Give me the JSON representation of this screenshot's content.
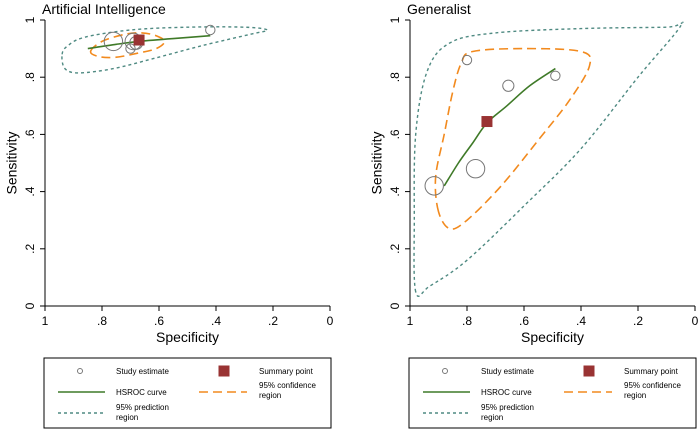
{
  "chart_data": [
    {
      "type": "scatter",
      "title": "Artificial Intelligence",
      "xlabel": "Specificity",
      "ylabel": "Sensitivity",
      "xlim": [
        1.0,
        0.0
      ],
      "ylim": [
        0.0,
        1.0
      ],
      "x_ticks": [
        1,
        0.8,
        0.6,
        0.4,
        0.2,
        0
      ],
      "x_tick_labels": [
        "1",
        ".8",
        ".6",
        ".4",
        ".2",
        "0"
      ],
      "y_ticks": [
        0,
        0.2,
        0.4,
        0.6,
        0.8,
        1
      ],
      "y_tick_labels": [
        "0",
        ".2",
        ".4",
        ".6",
        ".8",
        "1"
      ],
      "study_estimates": [
        {
          "specificity": 0.76,
          "sensitivity": 0.925,
          "weight": 8
        },
        {
          "specificity": 0.7,
          "sensitivity": 0.9,
          "weight": 3
        },
        {
          "specificity": 0.69,
          "sensitivity": 0.925,
          "weight": 7
        },
        {
          "specificity": 0.68,
          "sensitivity": 0.92,
          "weight": 5
        },
        {
          "specificity": 0.42,
          "sensitivity": 0.965,
          "weight": 3
        }
      ],
      "summary_point": {
        "specificity": 0.67,
        "sensitivity": 0.93
      },
      "hsroc_curve": [
        {
          "specificity": 0.85,
          "sensitivity": 0.9
        },
        {
          "specificity": 0.75,
          "sensitivity": 0.915
        },
        {
          "specificity": 0.67,
          "sensitivity": 0.925
        },
        {
          "specificity": 0.55,
          "sensitivity": 0.935
        },
        {
          "specificity": 0.42,
          "sensitivity": 0.945
        }
      ],
      "confidence_region": [
        {
          "specificity": 0.84,
          "sensitivity": 0.89
        },
        {
          "specificity": 0.8,
          "sensitivity": 0.925
        },
        {
          "specificity": 0.72,
          "sensitivity": 0.95
        },
        {
          "specificity": 0.66,
          "sensitivity": 0.955
        },
        {
          "specificity": 0.61,
          "sensitivity": 0.945
        },
        {
          "specificity": 0.58,
          "sensitivity": 0.925
        },
        {
          "specificity": 0.61,
          "sensitivity": 0.9
        },
        {
          "specificity": 0.67,
          "sensitivity": 0.885
        },
        {
          "specificity": 0.75,
          "sensitivity": 0.87
        },
        {
          "specificity": 0.81,
          "sensitivity": 0.872
        }
      ],
      "prediction_region": [
        {
          "specificity": 0.94,
          "sensitivity": 0.88
        },
        {
          "specificity": 0.92,
          "sensitivity": 0.91
        },
        {
          "specificity": 0.86,
          "sensitivity": 0.94
        },
        {
          "specificity": 0.7,
          "sensitivity": 0.965
        },
        {
          "specificity": 0.5,
          "sensitivity": 0.975
        },
        {
          "specificity": 0.3,
          "sensitivity": 0.975
        },
        {
          "specificity": 0.22,
          "sensitivity": 0.965
        },
        {
          "specificity": 0.28,
          "sensitivity": 0.95
        },
        {
          "specificity": 0.45,
          "sensitivity": 0.91
        },
        {
          "specificity": 0.62,
          "sensitivity": 0.865
        },
        {
          "specificity": 0.76,
          "sensitivity": 0.83
        },
        {
          "specificity": 0.88,
          "sensitivity": 0.815
        },
        {
          "specificity": 0.93,
          "sensitivity": 0.83
        }
      ],
      "legend": {
        "study_estimate": "Study estimate",
        "summary_point": "Summary point",
        "hsroc_curve": "HSROC curve",
        "confidence_region_line1": "95% confidence",
        "confidence_region_line2": "region",
        "prediction_region_line1": "95% prediction",
        "prediction_region_line2": "region"
      }
    },
    {
      "type": "scatter",
      "title": "Generalist",
      "xlabel": "Specificity",
      "ylabel": "Sensitivity",
      "xlim": [
        1.0,
        0.0
      ],
      "ylim": [
        0.0,
        1.0
      ],
      "x_ticks": [
        1,
        0.8,
        0.6,
        0.4,
        0.2,
        0
      ],
      "x_tick_labels": [
        "1",
        ".8",
        ".6",
        ".4",
        ".2",
        "0"
      ],
      "y_ticks": [
        0,
        0.2,
        0.4,
        0.6,
        0.8,
        1
      ],
      "y_tick_labels": [
        "0",
        ".2",
        ".4",
        ".6",
        ".8",
        "1"
      ],
      "study_estimates": [
        {
          "specificity": 0.915,
          "sensitivity": 0.42,
          "weight": 8
        },
        {
          "specificity": 0.77,
          "sensitivity": 0.48,
          "weight": 8
        },
        {
          "specificity": 0.8,
          "sensitivity": 0.86,
          "weight": 3
        },
        {
          "specificity": 0.655,
          "sensitivity": 0.77,
          "weight": 4
        },
        {
          "specificity": 0.49,
          "sensitivity": 0.805,
          "weight": 3
        }
      ],
      "summary_point": {
        "specificity": 0.73,
        "sensitivity": 0.645
      },
      "hsroc_curve": [
        {
          "specificity": 0.88,
          "sensitivity": 0.42
        },
        {
          "specificity": 0.83,
          "sensitivity": 0.5
        },
        {
          "specificity": 0.78,
          "sensitivity": 0.57
        },
        {
          "specificity": 0.73,
          "sensitivity": 0.64
        },
        {
          "specificity": 0.66,
          "sensitivity": 0.7
        },
        {
          "specificity": 0.58,
          "sensitivity": 0.77
        },
        {
          "specificity": 0.49,
          "sensitivity": 0.83
        }
      ],
      "confidence_region": [
        {
          "specificity": 0.9,
          "sensitivity": 0.33
        },
        {
          "specificity": 0.91,
          "sensitivity": 0.45
        },
        {
          "specificity": 0.88,
          "sensitivity": 0.6
        },
        {
          "specificity": 0.85,
          "sensitivity": 0.75
        },
        {
          "specificity": 0.82,
          "sensitivity": 0.85
        },
        {
          "specificity": 0.78,
          "sensitivity": 0.89
        },
        {
          "specificity": 0.6,
          "sensitivity": 0.9
        },
        {
          "specificity": 0.4,
          "sensitivity": 0.89
        },
        {
          "specificity": 0.37,
          "sensitivity": 0.84
        },
        {
          "specificity": 0.44,
          "sensitivity": 0.72
        },
        {
          "specificity": 0.55,
          "sensitivity": 0.58
        },
        {
          "specificity": 0.68,
          "sensitivity": 0.42
        },
        {
          "specificity": 0.8,
          "sensitivity": 0.3
        },
        {
          "specificity": 0.86,
          "sensitivity": 0.27
        }
      ],
      "prediction_region": [
        {
          "specificity": 0.98,
          "sensitivity": 0.05
        },
        {
          "specificity": 0.985,
          "sensitivity": 0.3
        },
        {
          "specificity": 0.98,
          "sensitivity": 0.6
        },
        {
          "specificity": 0.94,
          "sensitivity": 0.82
        },
        {
          "specificity": 0.86,
          "sensitivity": 0.92
        },
        {
          "specificity": 0.7,
          "sensitivity": 0.955
        },
        {
          "specificity": 0.4,
          "sensitivity": 0.97
        },
        {
          "specificity": 0.1,
          "sensitivity": 0.975
        },
        {
          "specificity": 0.05,
          "sensitivity": 0.98
        },
        {
          "specificity": 0.2,
          "sensitivity": 0.8
        },
        {
          "specificity": 0.4,
          "sensitivity": 0.55
        },
        {
          "specificity": 0.6,
          "sensitivity": 0.35
        },
        {
          "specificity": 0.8,
          "sensitivity": 0.16
        },
        {
          "specificity": 0.93,
          "sensitivity": 0.07
        }
      ],
      "legend": {
        "study_estimate": "Study estimate",
        "summary_point": "Summary point",
        "hsroc_curve": "HSROC curve",
        "confidence_region_line1": "95% confidence",
        "confidence_region_line2": "region",
        "prediction_region_line1": "95% prediction",
        "prediction_region_line2": "region"
      }
    }
  ],
  "colors": {
    "hsroc": "#3f7a28",
    "confidence": "#f28a1e",
    "prediction": "#4f8a82",
    "summary": "#993333",
    "axis": "#000000",
    "study": "#777777"
  }
}
